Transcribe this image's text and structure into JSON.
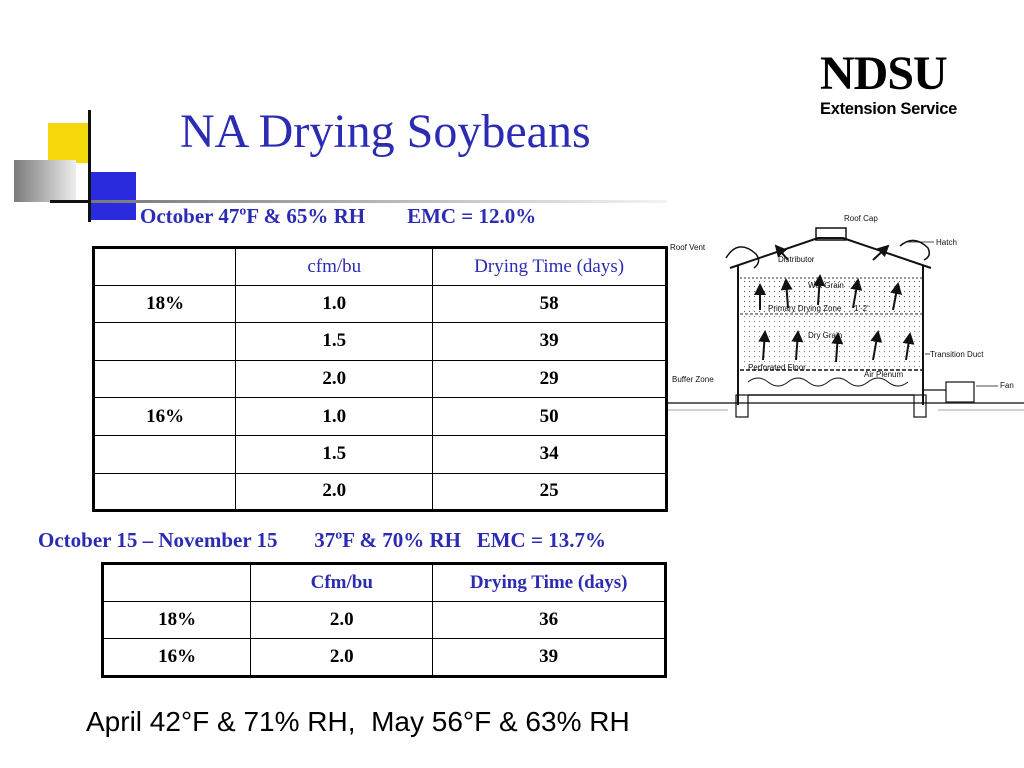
{
  "title": "NA Drying Soybeans",
  "logo": {
    "main": "NDSU",
    "sub": "Extension Service"
  },
  "condition1": "October 47ºF & 65% RH        EMC = 12.0%",
  "table1": {
    "headers": [
      "",
      "cfm/bu",
      "Drying Time (days)"
    ],
    "rows": [
      [
        "18%",
        "1.0",
        "58"
      ],
      [
        "",
        "1.5",
        "39"
      ],
      [
        "",
        "2.0",
        "29"
      ],
      [
        "16%",
        "1.0",
        "50"
      ],
      [
        "",
        "1.5",
        "34"
      ],
      [
        "",
        "2.0",
        "25"
      ]
    ]
  },
  "condition2": "October 15 – November 15       37ºF & 70% RH   EMC = 13.7%",
  "table2": {
    "headers": [
      "",
      "Cfm/bu",
      "Drying Time (days)"
    ],
    "rows": [
      [
        "18%",
        "2.0",
        "36"
      ],
      [
        "16%",
        "2.0",
        "39"
      ]
    ]
  },
  "bottom_text": "April 42°F & 71% RH,  May 56°F & 63% RH",
  "diagram": {
    "labels": {
      "roof_cap": "Roof Cap",
      "hatch": "Hatch",
      "roof_vent": "Roof Vent",
      "distributor": "Distributor",
      "wet_grain": "Wet Grain",
      "primary_zone": "Primary Drying Zone",
      "zone_depth": "1'-2'",
      "dry_grain": "Dry Grain",
      "transition_duct": "Transition Duct",
      "perforated_floor": "Perforated Floor",
      "plenum": "Air Plenum",
      "buffer_zone": "Buffer Zone",
      "fan": "Fan"
    }
  },
  "colors": {
    "accent": "#2b2bb3",
    "yellow": "#f5d90a",
    "blue": "#2a2adf"
  }
}
